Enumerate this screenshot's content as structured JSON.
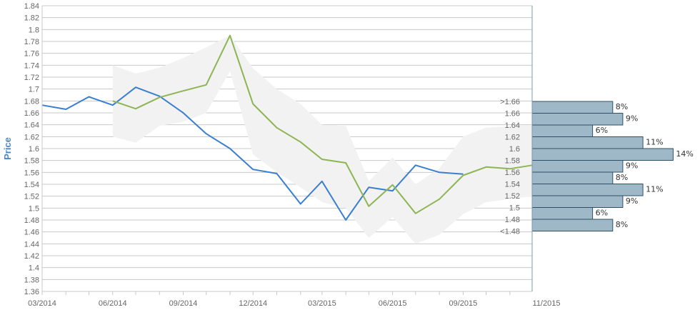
{
  "chart_data": {
    "type": "line",
    "ylabel": "Price",
    "ylim": [
      1.36,
      1.84
    ],
    "y_ticks": [
      "1.36",
      "1.38",
      "1.4",
      "1.42",
      "1.44",
      "1.46",
      "1.48",
      "1.5",
      "1.52",
      "1.54",
      "1.56",
      "1.58",
      "1.6",
      "1.62",
      "1.64",
      "1.66",
      "1.68",
      "1.7",
      "1.72",
      "1.74",
      "1.76",
      "1.78",
      "1.8",
      "1.82",
      "1.84"
    ],
    "x_ticks": [
      "03/2014",
      "06/2014",
      "09/2014",
      "12/2014",
      "03/2015",
      "06/2015",
      "09/2015",
      "11/2015"
    ],
    "grid": true,
    "series": [
      {
        "color": "#3a7fcf",
        "points": [
          [
            "2014-03-01",
            1.673
          ],
          [
            "2014-04-01",
            1.666
          ],
          [
            "2014-05-01",
            1.687
          ],
          [
            "2014-06-01",
            1.673
          ],
          [
            "2014-07-01",
            1.703
          ],
          [
            "2014-08-01",
            1.688
          ],
          [
            "2014-09-01",
            1.66
          ],
          [
            "2014-10-01",
            1.625
          ],
          [
            "2014-11-01",
            1.6
          ],
          [
            "2014-12-01",
            1.565
          ],
          [
            "2015-01-01",
            1.558
          ],
          [
            "2015-02-01",
            1.507
          ],
          [
            "2015-03-01",
            1.545
          ],
          [
            "2015-04-01",
            1.48
          ],
          [
            "2015-05-01",
            1.535
          ],
          [
            "2015-06-01",
            1.529
          ],
          [
            "2015-07-01",
            1.572
          ],
          [
            "2015-08-01",
            1.56
          ],
          [
            "2015-09-01",
            1.557
          ]
        ]
      },
      {
        "color": "#8db552",
        "points": [
          [
            "2014-06-01",
            1.68
          ],
          [
            "2014-07-01",
            1.667
          ],
          [
            "2014-08-01",
            1.686
          ],
          [
            "2014-09-01",
            1.697
          ],
          [
            "2014-10-01",
            1.707
          ],
          [
            "2014-11-01",
            1.79
          ],
          [
            "2014-12-01",
            1.675
          ],
          [
            "2015-01-01",
            1.635
          ],
          [
            "2015-02-01",
            1.611
          ],
          [
            "2015-03-01",
            1.582
          ],
          [
            "2015-04-01",
            1.576
          ],
          [
            "2015-05-01",
            1.503
          ],
          [
            "2015-06-01",
            1.539
          ],
          [
            "2015-07-01",
            1.491
          ],
          [
            "2015-08-01",
            1.515
          ],
          [
            "2015-09-01",
            1.555
          ],
          [
            "2015-10-01",
            1.569
          ],
          [
            "2015-11-01",
            1.566
          ],
          [
            "2015-11-30",
            1.572
          ]
        ]
      }
    ],
    "forecast_band": {
      "color": "#f2f2f2",
      "points": [
        [
          "2014-06-01",
          1.62,
          1.74
        ],
        [
          "2014-07-01",
          1.61,
          1.726
        ],
        [
          "2014-08-01",
          1.638,
          1.736
        ],
        [
          "2014-09-01",
          1.645,
          1.752
        ],
        [
          "2014-10-01",
          1.66,
          1.77
        ],
        [
          "2014-11-01",
          1.73,
          1.79
        ],
        [
          "2014-12-01",
          1.59,
          1.735
        ],
        [
          "2015-01-01",
          1.56,
          1.7
        ],
        [
          "2015-02-01",
          1.535,
          1.675
        ],
        [
          "2015-03-01",
          1.51,
          1.64
        ],
        [
          "2015-04-01",
          1.5,
          1.638
        ],
        [
          "2015-05-01",
          1.45,
          1.545
        ],
        [
          "2015-06-01",
          1.485,
          1.585
        ],
        [
          "2015-07-01",
          1.44,
          1.54
        ],
        [
          "2015-08-01",
          1.455,
          1.567
        ],
        [
          "2015-09-01",
          1.49,
          1.62
        ],
        [
          "2015-10-01",
          1.51,
          1.635
        ],
        [
          "2015-11-30",
          1.52,
          1.64
        ]
      ]
    },
    "distribution": {
      "color": "#9fb8c8",
      "bins": [
        {
          "label": ">1.66",
          "pct": "8%",
          "value": 8
        },
        {
          "label": "1.66",
          "pct": "9%",
          "value": 9
        },
        {
          "label": "1.64",
          "pct": "6%",
          "value": 6
        },
        {
          "label": "1.62",
          "pct": "11%",
          "value": 11
        },
        {
          "label": "1.6",
          "pct": "14%",
          "value": 14
        },
        {
          "label": "1.58",
          "pct": "9%",
          "value": 9
        },
        {
          "label": "1.56",
          "pct": "8%",
          "value": 8
        },
        {
          "label": "1.54",
          "pct": "11%",
          "value": 11
        },
        {
          "label": "1.52",
          "pct": "9%",
          "value": 9
        },
        {
          "label": "1.5",
          "pct": "6%",
          "value": 6
        },
        {
          "label": "1.48",
          "pct": "8%",
          "value": 8
        }
      ],
      "extra_label": "<1.48"
    }
  }
}
